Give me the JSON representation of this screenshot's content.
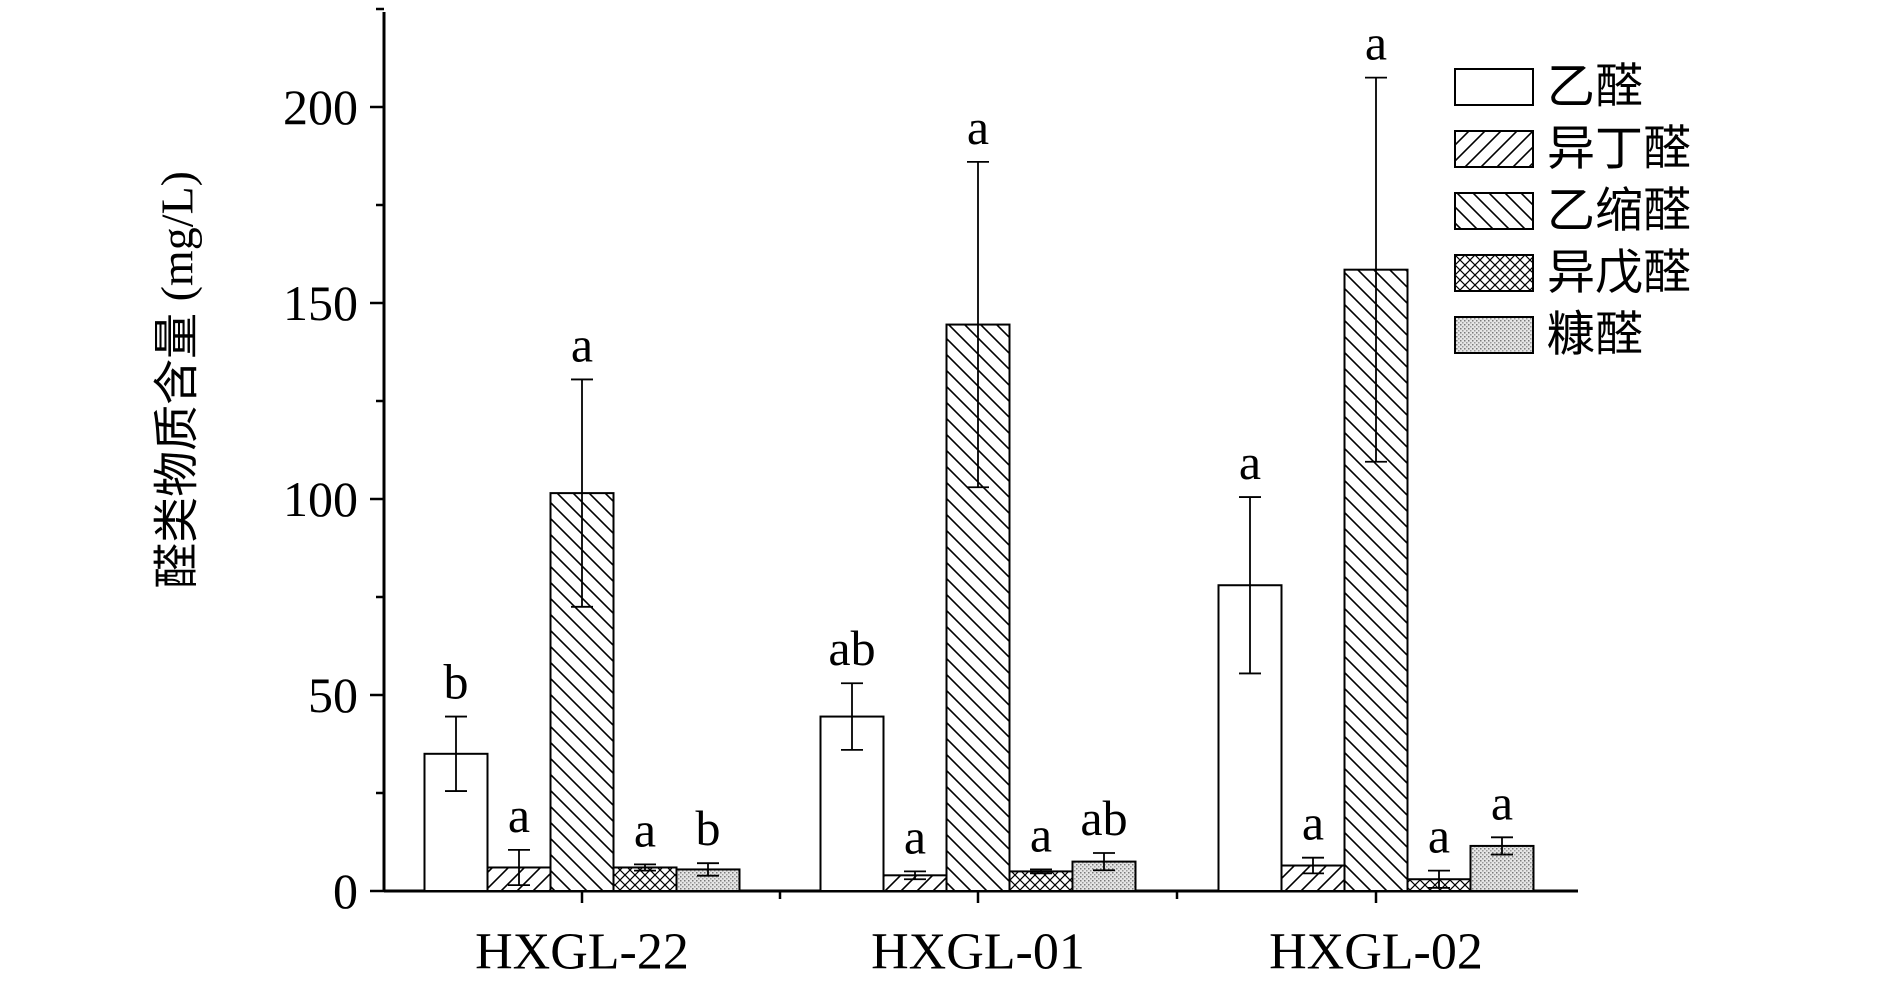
{
  "chart_data": {
    "type": "bar",
    "ylabel": "醛类物质含量 (mg/L)",
    "xlabel": "",
    "ylim": [
      0,
      225
    ],
    "yticks": [
      0,
      50,
      100,
      150,
      200
    ],
    "categories": [
      "HXGL-22",
      "HXGL-01",
      "HXGL-02"
    ],
    "legend_position": "top-right",
    "series": [
      {
        "name": "乙醛",
        "pattern": "none",
        "values": [
          35,
          44.5,
          78
        ],
        "errors": [
          9.5,
          8.5,
          22.5
        ],
        "labels": [
          "b",
          "ab",
          "a"
        ]
      },
      {
        "name": "异丁醛",
        "pattern": "hatch-forward",
        "values": [
          6,
          4,
          6.5
        ],
        "errors": [
          4.5,
          1,
          2
        ],
        "labels": [
          "a",
          "a",
          "a"
        ]
      },
      {
        "name": "乙缩醛",
        "pattern": "hatch-back",
        "values": [
          101.5,
          144.5,
          158.5
        ],
        "errors": [
          29,
          41.5,
          49
        ],
        "labels": [
          "a",
          "a",
          "a"
        ]
      },
      {
        "name": "异戊醛",
        "pattern": "crosshatch",
        "values": [
          6,
          5,
          3
        ],
        "errors": [
          0.8,
          0.5,
          2.2
        ],
        "labels": [
          "a",
          "a",
          "a"
        ]
      },
      {
        "name": "糠醛",
        "pattern": "dots",
        "values": [
          5.5,
          7.5,
          11.5
        ],
        "errors": [
          1.6,
          2.2,
          2.2
        ],
        "labels": [
          "b",
          "ab",
          "a"
        ]
      }
    ]
  }
}
